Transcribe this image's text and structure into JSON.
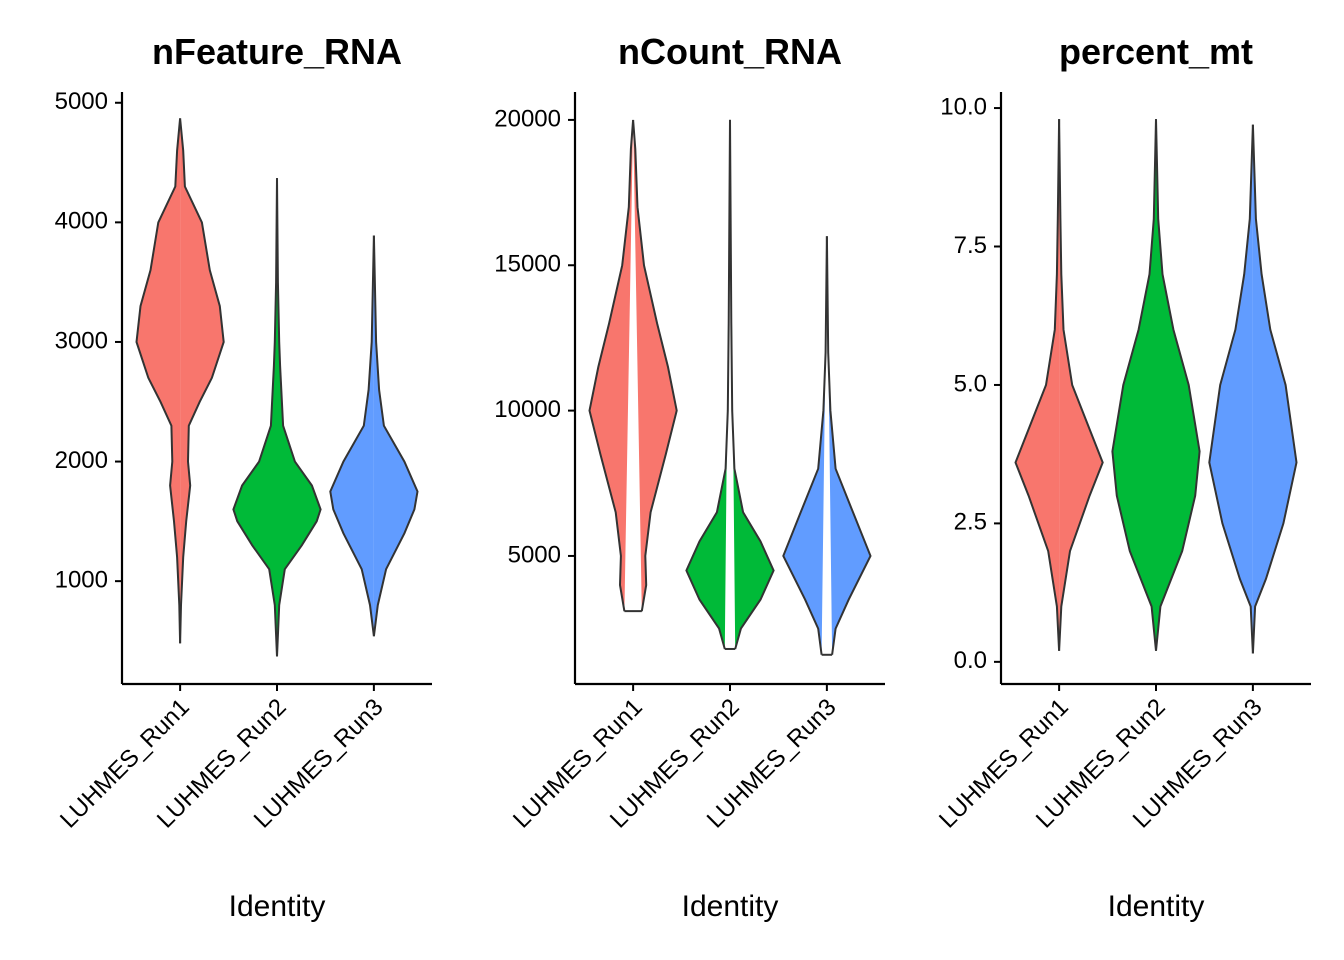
{
  "chart_data": [
    {
      "type": "violin",
      "title": "nFeature_RNA",
      "x_label": "Identity",
      "categories": [
        "LUHMES_Run1",
        "LUHMES_Run2",
        "LUHMES_Run3"
      ],
      "ylim": [
        140,
        5090
      ],
      "yticks": [
        1000,
        2000,
        3000,
        4000,
        5000
      ],
      "violins": [
        {
          "color": "#F8766D",
          "y": [
            480,
            800,
            1200,
            1500,
            1800,
            2000,
            2300,
            2500,
            2700,
            3000,
            3300,
            3600,
            4000,
            4300,
            4600,
            4870
          ],
          "density": [
            0,
            0.02,
            0.07,
            0.14,
            0.23,
            0.18,
            0.2,
            0.45,
            0.73,
            1,
            0.91,
            0.68,
            0.5,
            0.11,
            0.07,
            0
          ]
        },
        {
          "color": "#00BA38",
          "y": [
            370,
            800,
            1100,
            1300,
            1500,
            1600,
            1800,
            2000,
            2300,
            2800,
            3000,
            3500,
            4370
          ],
          "density": [
            0,
            0.05,
            0.18,
            0.57,
            0.91,
            1,
            0.8,
            0.41,
            0.14,
            0.07,
            0.05,
            0.02,
            0
          ]
        },
        {
          "color": "#619CFF",
          "y": [
            540,
            800,
            1100,
            1400,
            1600,
            1750,
            2000,
            2300,
            2600,
            3000,
            3890
          ],
          "density": [
            0,
            0.09,
            0.28,
            0.7,
            0.93,
            1,
            0.7,
            0.23,
            0.12,
            0.05,
            0
          ]
        }
      ]
    },
    {
      "type": "violin",
      "title": "nCount_RNA",
      "x_label": "Identity",
      "categories": [
        "LUHMES_Run1",
        "LUHMES_Run2",
        "LUHMES_Run3"
      ],
      "ylim": [
        595,
        20960
      ],
      "yticks": [
        5000,
        10000,
        15000,
        20000
      ],
      "violins": [
        {
          "color": "#F8766D",
          "y": [
            3100,
            4000,
            5000,
            6500,
            8500,
            10000,
            11500,
            13000,
            15000,
            17000,
            19000,
            20000
          ],
          "density": [
            0.2,
            0.3,
            0.28,
            0.4,
            0.75,
            1,
            0.8,
            0.55,
            0.25,
            0.1,
            0.05,
            0
          ]
        },
        {
          "color": "#00BA38",
          "y": [
            1800,
            2500,
            3500,
            4500,
            5500,
            6500,
            8000,
            10000,
            13000,
            20000
          ],
          "density": [
            0.12,
            0.25,
            0.7,
            1,
            0.7,
            0.3,
            0.1,
            0.05,
            0.03,
            0
          ]
        },
        {
          "color": "#619CFF",
          "y": [
            1600,
            2500,
            3500,
            5000,
            6500,
            8000,
            10000,
            12000,
            16000
          ],
          "density": [
            0.12,
            0.2,
            0.5,
            1,
            0.6,
            0.2,
            0.08,
            0.03,
            0
          ]
        }
      ]
    },
    {
      "type": "violin",
      "title": "percent_mt",
      "x_label": "Identity",
      "categories": [
        "LUHMES_Run1",
        "LUHMES_Run2",
        "LUHMES_Run3"
      ],
      "ylim": [
        -0.4,
        10.29
      ],
      "yticks": [
        {
          "value": 0,
          "label": "0.0"
        },
        {
          "value": 2.5,
          "label": "2.5"
        },
        {
          "value": 5,
          "label": "5.0"
        },
        {
          "value": 7.5,
          "label": "7.5"
        },
        {
          "value": 10,
          "label": "10.0"
        }
      ],
      "violins": [
        {
          "color": "#F8766D",
          "y": [
            0.2,
            1,
            2,
            3,
            3.6,
            4.2,
            5,
            6,
            7,
            8,
            9.8
          ],
          "density": [
            0,
            0.05,
            0.25,
            0.7,
            1,
            0.7,
            0.3,
            0.1,
            0.05,
            0.03,
            0
          ]
        },
        {
          "color": "#00BA38",
          "y": [
            0.2,
            1,
            2,
            3,
            3.8,
            5,
            6,
            7,
            8,
            9.8
          ],
          "density": [
            0,
            0.1,
            0.6,
            0.9,
            1,
            0.75,
            0.4,
            0.15,
            0.05,
            0
          ]
        },
        {
          "color": "#619CFF",
          "y": [
            0.15,
            1,
            1.5,
            2.5,
            3.6,
            5,
            6,
            7,
            8,
            9.7
          ],
          "density": [
            0,
            0.05,
            0.3,
            0.7,
            1,
            0.75,
            0.4,
            0.2,
            0.07,
            0
          ]
        }
      ]
    }
  ]
}
